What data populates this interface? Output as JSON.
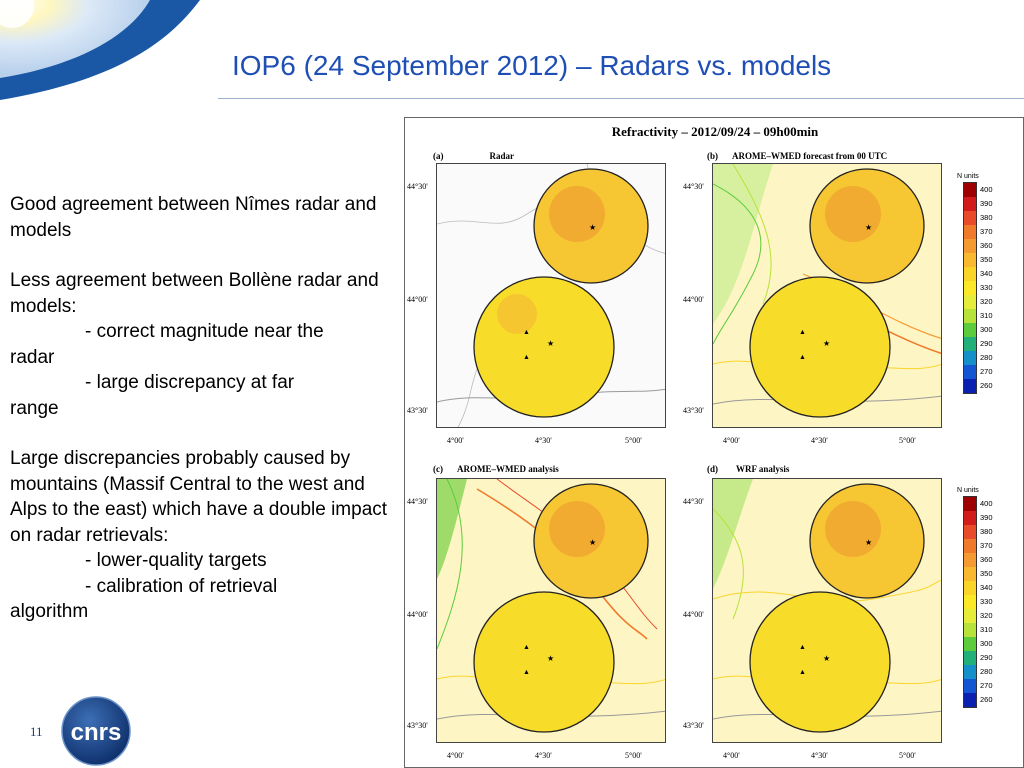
{
  "slide": {
    "title": "IOP6 (24 September 2012) – Radars vs. models",
    "page_number": "11",
    "logo_text": "CNRS"
  },
  "body": {
    "para1": "Good agreement between Nîmes radar and models",
    "para2": "Less agreement between Bollène radar and models:",
    "para2_item1a": "- correct magnitude near the",
    "para2_item1b": "radar",
    "para2_item2a": "- large discrepancy at far",
    "para2_item2b": "range",
    "para3": "Large discrepancies probably caused by mountains (Massif Central to the west and Alps to the east) which have a double impact on radar retrievals:",
    "para3_item1": "- lower-quality targets",
    "para3_item2a": "- calibration of retrieval",
    "para3_item2b": "algorithm"
  },
  "figure": {
    "title": "Refractivity – 2012/09/24 – 09h00min",
    "panels": [
      {
        "letter": "(a)",
        "title": "Radar"
      },
      {
        "letter": "(b)",
        "title": "AROME–WMED forecast from 00 UTC"
      },
      {
        "letter": "(c)",
        "title": "AROME–WMED analysis"
      },
      {
        "letter": "(d)",
        "title": "WRF analysis"
      }
    ],
    "lat_ticks": [
      "44°30'",
      "44°00'",
      "43°30'"
    ],
    "lon_ticks": [
      "4°00'",
      "4°30'",
      "5°00'"
    ],
    "colorbar": {
      "title": "N units",
      "labels": [
        "400",
        "390",
        "380",
        "370",
        "360",
        "350",
        "340",
        "330",
        "320",
        "310",
        "300",
        "290",
        "280",
        "270",
        "260"
      ],
      "colors": [
        "#9e0000",
        "#d21c1c",
        "#e84a2a",
        "#f07a2c",
        "#f59a30",
        "#f8b830",
        "#fbd42a",
        "#fbe826",
        "#e6ec3a",
        "#b6e23a",
        "#5ccc3c",
        "#22b07a",
        "#1690c8",
        "#1455d4",
        "#0a20b0"
      ]
    }
  }
}
